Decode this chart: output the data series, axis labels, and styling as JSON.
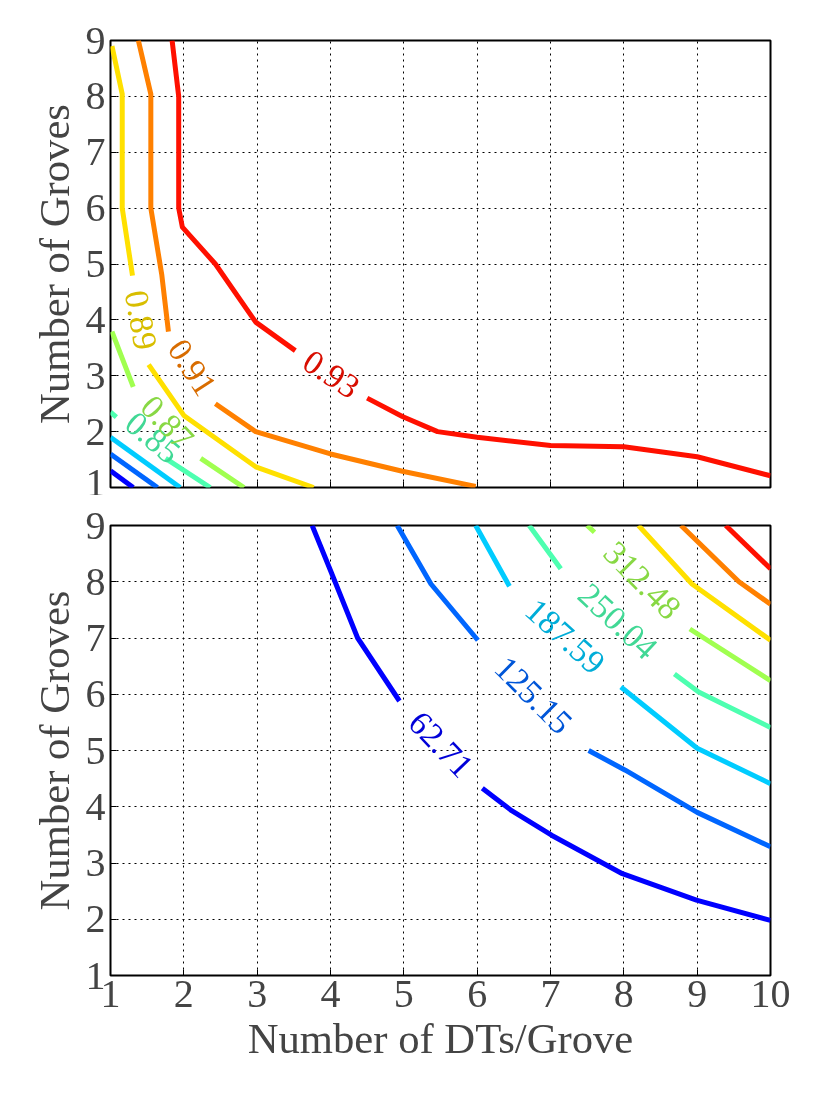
{
  "chart_data": [
    {
      "type": "line",
      "ylabel": "Number of Groves",
      "xlim": [
        1,
        10
      ],
      "ylim": [
        1,
        9
      ],
      "xticks": [
        1,
        2,
        3,
        4,
        5,
        6,
        7,
        8,
        9,
        10
      ],
      "yticks": [
        1,
        2,
        3,
        4,
        5,
        6,
        7,
        8,
        9
      ],
      "tick_labels": "y",
      "grid": true,
      "series": [
        {
          "color": "#0000ff",
          "x": [
            1.0,
            1.31
          ],
          "values": [
            1.3,
            1.0
          ]
        },
        {
          "color": "#0066ff",
          "x": [
            1.0,
            1.64
          ],
          "values": [
            1.6,
            1.0
          ]
        },
        {
          "color": "#00ccff",
          "x": [
            1.0,
            1.95
          ],
          "values": [
            1.9,
            1.0
          ]
        },
        {
          "name": "0.85",
          "color": "#4dffb0",
          "x": [
            1.0,
            1.08,
            null,
            1.75,
            2.36
          ],
          "values": [
            2.35,
            2.26,
            null,
            1.52,
            1.0
          ]
        },
        {
          "name": "0.87",
          "color": "#a0ff50",
          "x": [
            1.02,
            1.31,
            null,
            2.23,
            2.82
          ],
          "values": [
            3.79,
            2.8,
            null,
            1.52,
            1.0
          ]
        },
        {
          "name": "0.89",
          "color": "#ffe000",
          "x": [
            1.02,
            1.16,
            1.16,
            1.3,
            null,
            1.52,
            2.0,
            2.98,
            3.77
          ],
          "values": [
            8.9,
            8.04,
            6.0,
            4.79,
            null,
            3.2,
            2.29,
            1.37,
            1.0
          ]
        },
        {
          "name": "0.91",
          "color": "#ff8000",
          "x": [
            1.38,
            1.55,
            1.55,
            1.7,
            1.79,
            null,
            2.43,
            2.98,
            4.0,
            4.98,
            5.98
          ],
          "values": [
            9,
            8.04,
            6.0,
            4.8,
            3.79,
            null,
            2.5,
            2.0,
            1.6,
            1.29,
            1.02
          ]
        },
        {
          "name": "0.93",
          "color": "#ff1000",
          "x": [
            1.84,
            1.93,
            1.93,
            1.98,
            2.43,
            2.98,
            3.52,
            null,
            4.5,
            4.98,
            5.46,
            6.0,
            7.0,
            8.0,
            9.0,
            10.0
          ],
          "values": [
            9,
            8,
            6,
            5.66,
            5.0,
            3.96,
            3.45,
            null,
            2.6,
            2.27,
            2.0,
            1.9,
            1.75,
            1.73,
            1.55,
            1.21
          ]
        }
      ]
    },
    {
      "type": "line",
      "xlabel": "Number of DTs/Grove",
      "ylabel": "Number of Groves",
      "xlim": [
        1,
        10
      ],
      "ylim": [
        1,
        9
      ],
      "xticks": [
        1,
        2,
        3,
        4,
        5,
        6,
        7,
        8,
        9,
        10
      ],
      "yticks": [
        1,
        2,
        3,
        4,
        5,
        6,
        7,
        8,
        9
      ],
      "grid": true,
      "series": [
        {
          "name": "62.71",
          "color": "#0000ff",
          "x": [
            3.75,
            4.0,
            4.37,
            4.94,
            null,
            6.07,
            6.47,
            7.02,
            7.98,
            8.99,
            10.0
          ],
          "values": [
            9,
            8.2,
            7.0,
            5.88,
            null,
            4.33,
            3.93,
            3.49,
            2.81,
            2.34,
            1.98
          ]
        },
        {
          "name": "125.15",
          "color": "#0066ff",
          "x": [
            4.91,
            5.37,
            6.01,
            null,
            7.52,
            8.02,
            9.0,
            10.0
          ],
          "values": [
            9,
            7.96,
            6.96,
            null,
            5.0,
            4.65,
            3.9,
            3.29
          ]
        },
        {
          "name": "187.59",
          "color": "#00ccff",
          "x": [
            5.98,
            6.44,
            null,
            7.96,
            9.0,
            10.0
          ],
          "values": [
            9,
            7.92,
            null,
            6.13,
            5.04,
            4.41
          ]
        },
        {
          "name": "250.04",
          "color": "#4dffb0",
          "x": [
            6.71,
            7.14,
            null,
            8.69,
            9.02,
            10.0
          ],
          "values": [
            9,
            8.23,
            null,
            6.36,
            6.04,
            5.41
          ]
        },
        {
          "name": "312.48",
          "color": "#a0ff50",
          "x": [
            7.5,
            7.6,
            null,
            8.9,
            10.0
          ],
          "values": [
            9,
            8.88,
            null,
            7.16,
            6.24
          ]
        },
        {
          "color": "#ffe000",
          "x": [
            8.2,
            8.93,
            10.0
          ],
          "values": [
            9,
            7.96,
            6.96
          ]
        },
        {
          "color": "#ff8000",
          "x": [
            8.78,
            9.57,
            10.0
          ],
          "values": [
            9,
            8.0,
            7.6
          ]
        },
        {
          "color": "#ff1000",
          "x": [
            9.39,
            10.0
          ],
          "values": [
            9,
            8.23
          ]
        }
      ]
    }
  ]
}
